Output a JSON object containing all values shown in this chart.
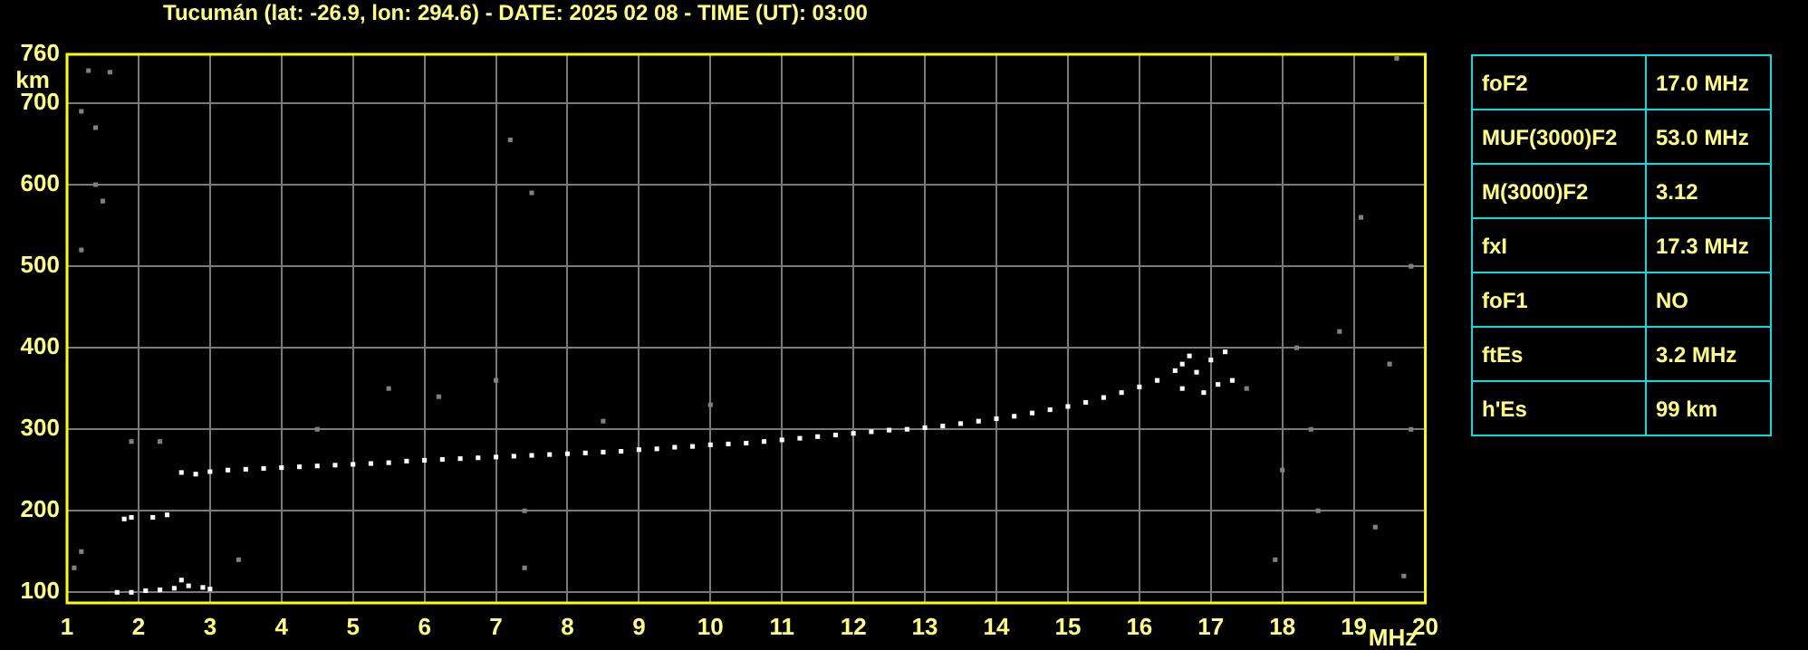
{
  "chart_data": {
    "type": "scatter",
    "title": "Tucumán (lat: -26.9, lon: 294.6) - DATE: 2025 02 08 - TIME (UT): 03:00",
    "xlabel": "MHz",
    "ylabel": "km",
    "xlim": [
      1,
      20
    ],
    "xticks": [
      1,
      2,
      3,
      4,
      5,
      6,
      7,
      8,
      9,
      10,
      11,
      12,
      13,
      14,
      15,
      16,
      17,
      18,
      19,
      20
    ],
    "ylim": [
      87,
      760
    ],
    "yticks": [
      100,
      200,
      300,
      400,
      500,
      600,
      700,
      760
    ],
    "grid": true,
    "legend": false,
    "marker": "square",
    "series": [
      {
        "color": "#ffffff",
        "x": [
          2.6,
          2.8,
          3.0,
          3.25,
          3.5,
          3.75,
          4,
          4.25,
          4.5,
          4.75,
          5,
          5.25,
          5.5,
          5.75,
          6,
          6.25,
          6.5,
          6.75,
          7,
          7.25,
          7.5,
          7.75,
          8,
          8.25,
          8.5,
          8.75,
          9,
          9.25,
          9.5,
          9.75,
          10,
          10.25,
          10.5,
          10.75,
          11,
          11.25,
          11.5,
          11.75,
          12,
          12.25,
          12.5,
          12.75,
          13,
          13.25,
          13.5,
          13.75,
          14,
          14.25,
          14.5,
          14.75,
          15,
          15.25,
          15.5,
          15.75,
          16,
          16.25,
          16.5,
          16.6,
          16.7,
          16.8,
          17,
          17.1,
          16.9,
          17.3,
          16.6,
          17.2,
          1.7,
          1.9,
          2.1,
          2.3,
          2.5,
          2.7,
          2.9,
          3.0,
          2.6,
          1.8,
          1.9,
          2.2,
          2.4
        ],
        "values": [
          247,
          245,
          248,
          250,
          251,
          252,
          253,
          254,
          255,
          256,
          257,
          258,
          259,
          261,
          262,
          263,
          264,
          265,
          266,
          267,
          268,
          269,
          270,
          271,
          272,
          273,
          275,
          276,
          278,
          279,
          281,
          282,
          283,
          285,
          287,
          289,
          291,
          293,
          295,
          297,
          299,
          300,
          302,
          304,
          307,
          310,
          313,
          316,
          320,
          324,
          328,
          333,
          339,
          345,
          352,
          360,
          372,
          380,
          390,
          370,
          385,
          355,
          345,
          360,
          350,
          395,
          100,
          100,
          102,
          103,
          105,
          108,
          106,
          104,
          115,
          190,
          192,
          192,
          195
        ]
      },
      {
        "color": "#808080",
        "x": [
          1.3,
          1.6,
          1.4,
          1.5,
          1.2,
          1.4,
          7.2,
          7.5,
          2.3,
          1.9,
          1.2,
          18.2,
          18.8,
          19.5,
          19.8,
          18.5,
          19.3,
          19.7,
          17.9,
          19.1,
          19.8,
          3.4,
          7.4,
          7.4,
          6.2,
          7.0,
          5.5,
          4.5,
          8.5,
          10.0,
          17.5,
          18.0,
          18.4,
          19.6,
          1.1,
          1.2
        ],
        "values": [
          740,
          738,
          600,
          580,
          690,
          670,
          655,
          590,
          285,
          285,
          520,
          400,
          420,
          380,
          300,
          200,
          180,
          120,
          140,
          560,
          500,
          140,
          130,
          200,
          340,
          360,
          350,
          300,
          310,
          330,
          350,
          250,
          300,
          755,
          130,
          150
        ]
      }
    ],
    "annotations": [
      "foF2",
      "17.0 MHz",
      "MUF(3000)F2",
      "53.0 MHz",
      "M(3000)F2",
      "3.12",
      "fxI",
      "17.3 MHz",
      "foF1",
      "NO",
      "ftEs",
      "3.2 MHz",
      "h'Es",
      "99 km"
    ]
  }
}
